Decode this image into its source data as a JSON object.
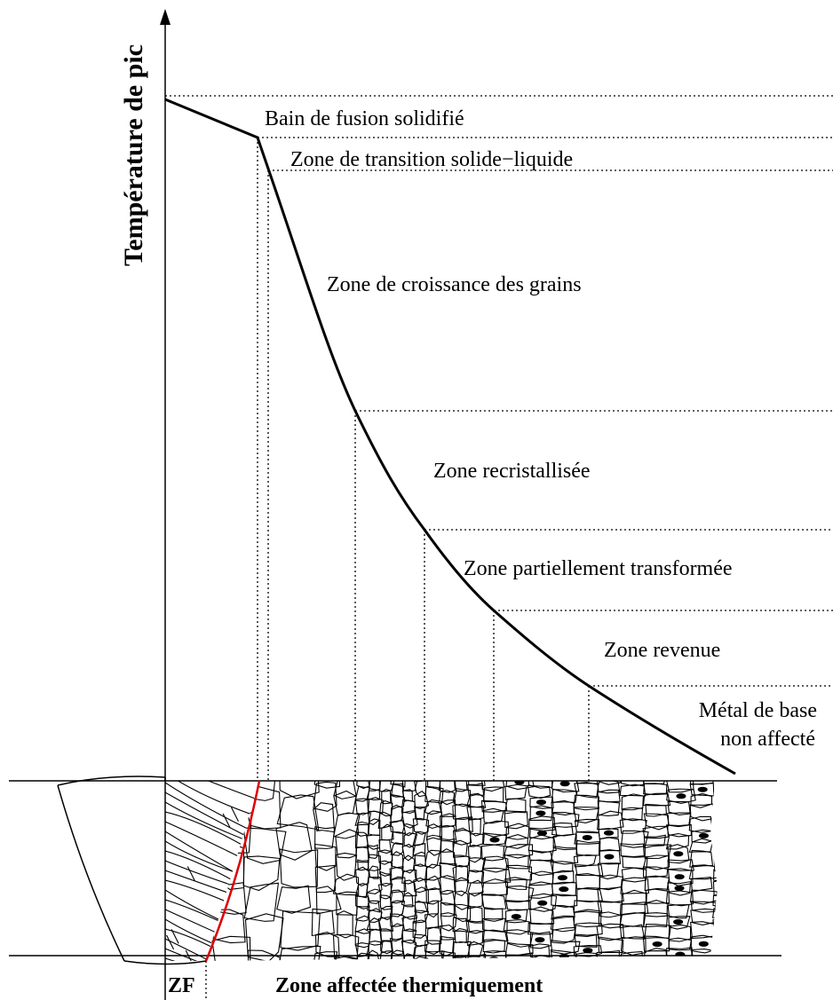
{
  "y_axis_label": "Température de pic",
  "zones": [
    "Bain de fusion solidifié",
    "Zone de transition solide−liquide",
    "Zone de croissance des grains",
    "Zone recristallisée",
    "Zone partiellement transformée",
    "Zone revenue"
  ],
  "base_metal": [
    "Métal de base",
    "non affecté"
  ],
  "bottom_labels": {
    "fusion_zone": "ZF",
    "haz": "Zone affectée thermiquement"
  }
}
